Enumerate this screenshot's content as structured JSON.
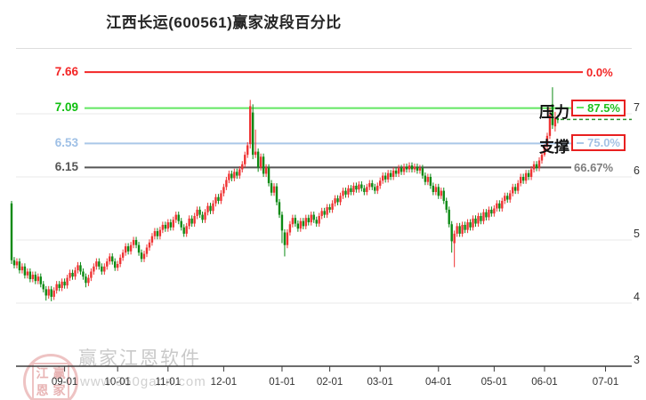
{
  "page": {
    "title": "江西长运(600561)赢家波段百分比"
  },
  "watermark": {
    "stamp_chars": [
      "江",
      "赢",
      "恩",
      "家"
    ],
    "brand": "赢家江恩软件",
    "site": "www.360gann.com"
  },
  "chart_data": {
    "type": "candlestick",
    "title": "江西长运(600561)赢家波段百分比",
    "legend_position": "none",
    "grid": "horizontal-only",
    "y_axis": {
      "side": "right",
      "ticks": [
        7,
        6,
        5,
        4,
        3
      ],
      "range_hint": [
        3,
        7.8
      ]
    },
    "x_axis": {
      "tick_labels": [
        "09-01",
        "10-01",
        "11-01",
        "12-01",
        "01-01",
        "02-01",
        "03-01",
        "04-01",
        "05-01",
        "06-01",
        "07-01"
      ],
      "tick_day_index": [
        20,
        40,
        59,
        80,
        102,
        120,
        139,
        161,
        182,
        201,
        224
      ]
    },
    "levels": [
      {
        "name": "",
        "value": 7.66,
        "percent": "0.0%",
        "line_color": "#f32525",
        "label_color": "#f32525",
        "pct_color": "#f32525",
        "boxed": false
      },
      {
        "name": "压力",
        "value": 7.09,
        "percent": "87.5%",
        "line_color": "#62e762",
        "label_color": "#0fbf0f",
        "pct_color": "#1fc11f",
        "boxed": true
      },
      {
        "name": "支撑",
        "value": 6.53,
        "percent": "75.0%",
        "line_color": "#aac7e8",
        "label_color": "#9fc0e6",
        "pct_color": "#a4c2e4",
        "boxed": true
      },
      {
        "name": "",
        "value": 6.15,
        "percent": "66.67%",
        "line_color": "#555555",
        "label_color": "#555555",
        "pct_color": "#7d7d7d",
        "boxed": false
      }
    ],
    "current_price_line": {
      "value": 6.91,
      "style": "dashed",
      "color": "#2f8f2f"
    },
    "colors": {
      "up": "#ef3434",
      "down": "#0c8a14",
      "grid": "#e8e8e8",
      "axis": "#3c3c3c",
      "box_border": "#e82020"
    },
    "ohlc": [
      [
        5.58,
        5.62,
        4.62,
        4.68
      ],
      [
        4.68,
        4.73,
        4.55,
        4.6
      ],
      [
        4.6,
        4.71,
        4.55,
        4.66
      ],
      [
        4.66,
        4.71,
        4.47,
        4.52
      ],
      [
        4.52,
        4.63,
        4.47,
        4.58
      ],
      [
        4.58,
        4.63,
        4.39,
        4.44
      ],
      [
        4.44,
        4.55,
        4.39,
        4.5
      ],
      [
        4.5,
        4.55,
        4.33,
        4.38
      ],
      [
        4.38,
        4.5,
        4.33,
        4.45
      ],
      [
        4.45,
        4.5,
        4.3,
        4.35
      ],
      [
        4.35,
        4.47,
        4.3,
        4.42
      ],
      [
        4.42,
        4.47,
        4.25,
        4.3
      ],
      [
        4.3,
        4.35,
        4.17,
        4.22
      ],
      [
        4.22,
        4.27,
        4.04,
        4.12
      ],
      [
        4.12,
        4.27,
        4.07,
        4.22
      ],
      [
        4.22,
        4.27,
        4.03,
        4.1
      ],
      [
        4.1,
        4.25,
        4.05,
        4.2
      ],
      [
        4.2,
        4.35,
        4.15,
        4.3
      ],
      [
        4.3,
        4.35,
        4.19,
        4.24
      ],
      [
        4.24,
        4.39,
        4.19,
        4.34
      ],
      [
        4.34,
        4.39,
        4.23,
        4.28
      ],
      [
        4.28,
        4.45,
        4.23,
        4.4
      ],
      [
        4.4,
        4.53,
        4.35,
        4.48
      ],
      [
        4.48,
        4.53,
        4.37,
        4.42
      ],
      [
        4.42,
        4.57,
        4.37,
        4.52
      ],
      [
        4.52,
        4.65,
        4.47,
        4.6
      ],
      [
        4.6,
        4.65,
        4.45,
        4.5
      ],
      [
        4.5,
        4.55,
        4.37,
        4.42
      ],
      [
        4.42,
        4.47,
        4.25,
        4.32
      ],
      [
        4.32,
        4.45,
        4.27,
        4.4
      ],
      [
        4.4,
        4.55,
        4.35,
        4.5
      ],
      [
        4.5,
        4.63,
        4.45,
        4.58
      ],
      [
        4.58,
        4.71,
        4.53,
        4.66
      ],
      [
        4.66,
        4.71,
        4.53,
        4.58
      ],
      [
        4.58,
        4.63,
        4.45,
        4.5
      ],
      [
        4.5,
        4.63,
        4.45,
        4.58
      ],
      [
        4.58,
        4.71,
        4.53,
        4.66
      ],
      [
        4.66,
        4.79,
        4.61,
        4.74
      ],
      [
        4.74,
        4.79,
        4.61,
        4.66
      ],
      [
        4.66,
        4.71,
        4.51,
        4.56
      ],
      [
        4.56,
        4.67,
        4.51,
        4.62
      ],
      [
        4.62,
        4.77,
        4.57,
        4.72
      ],
      [
        4.72,
        4.85,
        4.67,
        4.8
      ],
      [
        4.8,
        4.95,
        4.75,
        4.9
      ],
      [
        4.9,
        4.95,
        4.77,
        4.82
      ],
      [
        4.82,
        4.97,
        4.77,
        4.92
      ],
      [
        4.92,
        5.05,
        4.87,
        5.0
      ],
      [
        5.0,
        5.05,
        4.87,
        4.92
      ],
      [
        4.92,
        4.97,
        4.75,
        4.8
      ],
      [
        4.8,
        4.85,
        4.65,
        4.7
      ],
      [
        4.7,
        4.83,
        4.65,
        4.78
      ],
      [
        4.78,
        4.93,
        4.73,
        4.88
      ],
      [
        4.88,
        5.01,
        4.83,
        4.96
      ],
      [
        4.96,
        5.11,
        4.91,
        5.06
      ],
      [
        5.06,
        5.19,
        5.01,
        5.14
      ],
      [
        5.14,
        5.19,
        5.01,
        5.06
      ],
      [
        5.06,
        5.21,
        5.01,
        5.16
      ],
      [
        5.16,
        5.29,
        5.11,
        5.24
      ],
      [
        5.24,
        5.29,
        5.13,
        5.18
      ],
      [
        5.18,
        5.33,
        5.13,
        5.28
      ],
      [
        5.28,
        5.33,
        5.15,
        5.2
      ],
      [
        5.2,
        5.37,
        5.15,
        5.32
      ],
      [
        5.32,
        5.45,
        5.27,
        5.4
      ],
      [
        5.4,
        5.45,
        5.25,
        5.3
      ],
      [
        5.3,
        5.35,
        5.15,
        5.2
      ],
      [
        5.2,
        5.25,
        5.05,
        5.1
      ],
      [
        5.1,
        5.27,
        5.05,
        5.22
      ],
      [
        5.22,
        5.39,
        5.17,
        5.34
      ],
      [
        5.34,
        5.39,
        5.21,
        5.26
      ],
      [
        5.26,
        5.43,
        5.21,
        5.38
      ],
      [
        5.38,
        5.53,
        5.33,
        5.48
      ],
      [
        5.48,
        5.53,
        5.35,
        5.4
      ],
      [
        5.4,
        5.45,
        5.27,
        5.32
      ],
      [
        5.32,
        5.49,
        5.27,
        5.44
      ],
      [
        5.44,
        5.59,
        5.39,
        5.54
      ],
      [
        5.54,
        5.59,
        5.41,
        5.46
      ],
      [
        5.46,
        5.63,
        5.41,
        5.58
      ],
      [
        5.58,
        5.73,
        5.53,
        5.68
      ],
      [
        5.68,
        5.73,
        5.57,
        5.62
      ],
      [
        5.62,
        5.79,
        5.57,
        5.74
      ],
      [
        5.74,
        5.89,
        5.69,
        5.84
      ],
      [
        5.84,
        6.0,
        5.79,
        5.95
      ],
      [
        5.95,
        6.1,
        5.9,
        6.05
      ],
      [
        6.05,
        6.1,
        5.93,
        5.98
      ],
      [
        5.98,
        6.13,
        5.93,
        6.08
      ],
      [
        6.08,
        6.13,
        5.97,
        6.02
      ],
      [
        6.02,
        6.17,
        5.97,
        6.12
      ],
      [
        6.12,
        6.25,
        6.07,
        6.2
      ],
      [
        6.2,
        6.4,
        6.15,
        6.35
      ],
      [
        6.35,
        6.55,
        6.3,
        6.5
      ],
      [
        6.52,
        7.22,
        6.45,
        7.12
      ],
      [
        7.02,
        7.15,
        6.28,
        6.35
      ],
      [
        6.35,
        6.75,
        6.3,
        6.4
      ],
      [
        6.4,
        6.45,
        6.08,
        6.15
      ],
      [
        6.15,
        6.37,
        6.1,
        6.32
      ],
      [
        6.32,
        6.37,
        6.0,
        6.05
      ],
      [
        6.05,
        6.2,
        6.0,
        6.15
      ],
      [
        6.15,
        6.2,
        5.85,
        5.9
      ],
      [
        5.9,
        5.95,
        5.7,
        5.75
      ],
      [
        5.75,
        5.9,
        5.7,
        5.85
      ],
      [
        5.85,
        5.9,
        5.55,
        5.6
      ],
      [
        5.6,
        5.65,
        5.35,
        5.4
      ],
      [
        5.4,
        5.45,
        4.95,
        5.15
      ],
      [
        5.12,
        5.17,
        4.74,
        4.92
      ],
      [
        4.92,
        5.17,
        4.87,
        5.12
      ],
      [
        5.12,
        5.3,
        5.07,
        5.25
      ],
      [
        5.25,
        5.4,
        5.2,
        5.35
      ],
      [
        5.35,
        5.4,
        5.21,
        5.26
      ],
      [
        5.26,
        5.31,
        5.13,
        5.18
      ],
      [
        5.18,
        5.35,
        5.13,
        5.3
      ],
      [
        5.3,
        5.35,
        5.17,
        5.22
      ],
      [
        5.22,
        5.4,
        5.17,
        5.35
      ],
      [
        5.35,
        5.4,
        5.23,
        5.28
      ],
      [
        5.28,
        5.45,
        5.23,
        5.4
      ],
      [
        5.4,
        5.45,
        5.27,
        5.32
      ],
      [
        5.32,
        5.37,
        5.21,
        5.26
      ],
      [
        5.26,
        5.43,
        5.21,
        5.38
      ],
      [
        5.38,
        5.51,
        5.33,
        5.46
      ],
      [
        5.46,
        5.51,
        5.35,
        5.4
      ],
      [
        5.4,
        5.57,
        5.35,
        5.52
      ],
      [
        5.52,
        5.57,
        5.43,
        5.48
      ],
      [
        5.48,
        5.63,
        5.43,
        5.58
      ],
      [
        5.58,
        5.71,
        5.53,
        5.66
      ],
      [
        5.66,
        5.71,
        5.55,
        5.6
      ],
      [
        5.6,
        5.75,
        5.55,
        5.7
      ],
      [
        5.7,
        5.83,
        5.65,
        5.78
      ],
      [
        5.78,
        5.83,
        5.67,
        5.72
      ],
      [
        5.72,
        5.87,
        5.67,
        5.82
      ],
      [
        5.82,
        5.87,
        5.71,
        5.76
      ],
      [
        5.76,
        5.91,
        5.71,
        5.86
      ],
      [
        5.86,
        5.91,
        5.75,
        5.8
      ],
      [
        5.8,
        5.93,
        5.75,
        5.88
      ],
      [
        5.88,
        5.93,
        5.77,
        5.82
      ],
      [
        5.82,
        5.87,
        5.71,
        5.76
      ],
      [
        5.76,
        5.89,
        5.71,
        5.84
      ],
      [
        5.84,
        5.95,
        5.79,
        5.9
      ],
      [
        5.9,
        5.95,
        5.79,
        5.84
      ],
      [
        5.84,
        5.89,
        5.73,
        5.78
      ],
      [
        5.78,
        5.91,
        5.73,
        5.86
      ],
      [
        5.86,
        5.99,
        5.81,
        5.94
      ],
      [
        5.94,
        6.07,
        5.89,
        6.02
      ],
      [
        6.02,
        6.07,
        5.91,
        5.96
      ],
      [
        5.96,
        6.11,
        5.91,
        6.06
      ],
      [
        6.06,
        6.11,
        5.95,
        6.0
      ],
      [
        6.0,
        6.15,
        5.95,
        6.1
      ],
      [
        6.1,
        6.15,
        6.0,
        6.05
      ],
      [
        6.05,
        6.19,
        6.0,
        6.14
      ],
      [
        6.14,
        6.19,
        6.03,
        6.08
      ],
      [
        6.08,
        6.21,
        6.03,
        6.16
      ],
      [
        6.16,
        6.21,
        6.07,
        6.12
      ],
      [
        6.12,
        6.23,
        6.07,
        6.18
      ],
      [
        6.18,
        6.23,
        6.07,
        6.12
      ],
      [
        6.12,
        6.21,
        6.07,
        6.16
      ],
      [
        6.16,
        6.21,
        6.05,
        6.1
      ],
      [
        6.1,
        6.19,
        6.05,
        6.14
      ],
      [
        6.14,
        6.19,
        5.97,
        6.02
      ],
      [
        6.02,
        6.07,
        5.87,
        5.92
      ],
      [
        5.92,
        6.05,
        5.87,
        6.0
      ],
      [
        6.0,
        6.05,
        5.81,
        5.86
      ],
      [
        5.86,
        5.91,
        5.71,
        5.76
      ],
      [
        5.76,
        5.89,
        5.71,
        5.84
      ],
      [
        5.84,
        5.89,
        5.65,
        5.7
      ],
      [
        5.7,
        5.83,
        5.65,
        5.78
      ],
      [
        5.78,
        5.83,
        5.57,
        5.62
      ],
      [
        5.62,
        5.67,
        5.43,
        5.48
      ],
      [
        5.48,
        5.53,
        5.2,
        5.25
      ],
      [
        5.25,
        5.3,
        4.8,
        4.98
      ],
      [
        4.95,
        5.15,
        4.57,
        5.1
      ],
      [
        5.1,
        5.27,
        5.05,
        5.22
      ],
      [
        5.22,
        5.27,
        5.05,
        5.1
      ],
      [
        5.1,
        5.29,
        5.05,
        5.24
      ],
      [
        5.24,
        5.29,
        5.11,
        5.16
      ],
      [
        5.16,
        5.33,
        5.11,
        5.28
      ],
      [
        5.28,
        5.33,
        5.15,
        5.2
      ],
      [
        5.2,
        5.39,
        5.15,
        5.34
      ],
      [
        5.34,
        5.39,
        5.21,
        5.26
      ],
      [
        5.26,
        5.43,
        5.21,
        5.38
      ],
      [
        5.38,
        5.43,
        5.25,
        5.3
      ],
      [
        5.3,
        5.49,
        5.25,
        5.44
      ],
      [
        5.44,
        5.49,
        5.31,
        5.36
      ],
      [
        5.36,
        5.53,
        5.31,
        5.48
      ],
      [
        5.48,
        5.53,
        5.37,
        5.42
      ],
      [
        5.42,
        5.55,
        5.37,
        5.5
      ],
      [
        5.5,
        5.63,
        5.45,
        5.58
      ],
      [
        5.58,
        5.63,
        5.45,
        5.5
      ],
      [
        5.5,
        5.67,
        5.45,
        5.62
      ],
      [
        5.62,
        5.75,
        5.57,
        5.7
      ],
      [
        5.7,
        5.75,
        5.59,
        5.64
      ],
      [
        5.64,
        5.79,
        5.59,
        5.74
      ],
      [
        5.74,
        5.89,
        5.69,
        5.84
      ],
      [
        5.84,
        5.89,
        5.73,
        5.78
      ],
      [
        5.78,
        5.95,
        5.73,
        5.9
      ],
      [
        5.9,
        6.05,
        5.85,
        6.0
      ],
      [
        6.0,
        6.05,
        5.89,
        5.94
      ],
      [
        5.94,
        6.11,
        5.89,
        6.06
      ],
      [
        6.06,
        6.11,
        5.95,
        6.0
      ],
      [
        6.0,
        6.17,
        5.95,
        6.12
      ],
      [
        6.12,
        6.25,
        6.07,
        6.2
      ],
      [
        6.2,
        6.25,
        6.09,
        6.14
      ],
      [
        6.14,
        6.31,
        6.09,
        6.26
      ],
      [
        6.26,
        6.4,
        6.21,
        6.35
      ],
      [
        6.35,
        6.52,
        6.32,
        6.48
      ],
      [
        6.48,
        6.7,
        6.44,
        6.65
      ],
      [
        6.65,
        7.1,
        6.6,
        6.98
      ],
      [
        7.15,
        7.42,
        6.76,
        6.82
      ],
      [
        6.8,
        7.03,
        6.72,
        6.93
      ],
      [
        6.93,
        6.98,
        6.85,
        6.9
      ]
    ]
  }
}
